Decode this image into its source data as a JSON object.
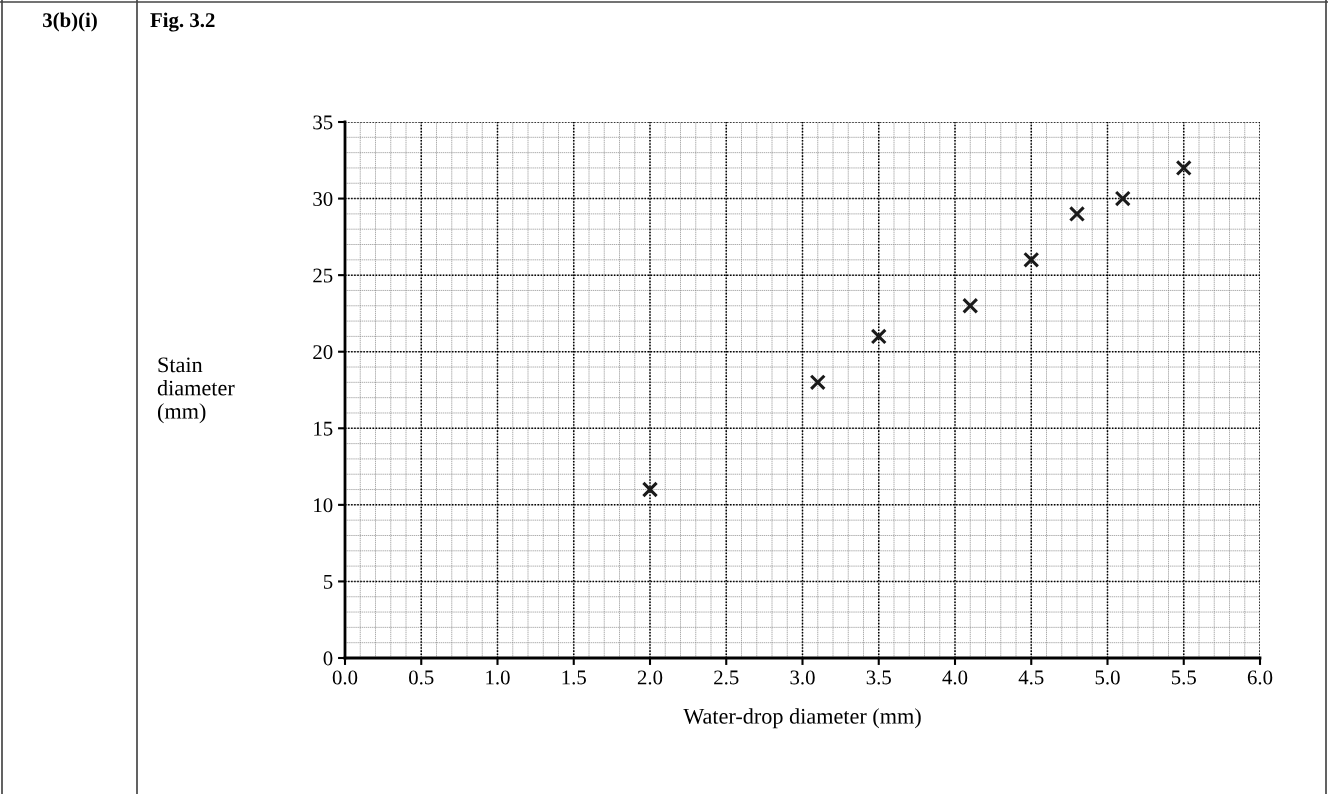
{
  "chart_data": {
    "type": "scatter",
    "title": "Fig. 3.2",
    "xlabel": "Water-drop diameter (mm)",
    "ylabel": "Stain\ndiameter\n(mm)",
    "annotations": [
      "3(b)(i)"
    ],
    "x": [
      2.0,
      3.1,
      3.5,
      4.1,
      4.5,
      4.8,
      5.1,
      5.5
    ],
    "series": [
      {
        "color": "#1a1a1a",
        "values": [
          11,
          18,
          21,
          23,
          26,
          29,
          30,
          32
        ]
      }
    ],
    "xlim": [
      0,
      6
    ],
    "ylim": [
      0,
      35
    ],
    "xticks": [
      {
        "value": 0,
        "label": "0.0"
      },
      {
        "value": 0.5,
        "label": "0.5"
      },
      {
        "value": 1,
        "label": "1.0"
      },
      {
        "value": 1.5,
        "label": "1.5"
      },
      {
        "value": 2,
        "label": "2.0"
      },
      {
        "value": 2.5,
        "label": "2.5"
      },
      {
        "value": 3,
        "label": "3.0"
      },
      {
        "value": 3.5,
        "label": "3.5"
      },
      {
        "value": 4,
        "label": "4.0"
      },
      {
        "value": 4.5,
        "label": "4.5"
      },
      {
        "value": 5,
        "label": "5.0"
      },
      {
        "value": 5.5,
        "label": "5.5"
      },
      {
        "value": 6,
        "label": "6.0"
      }
    ],
    "yticks": [
      0,
      5,
      10,
      15,
      20,
      25,
      30,
      35
    ],
    "grid": true,
    "marker": "cross"
  }
}
